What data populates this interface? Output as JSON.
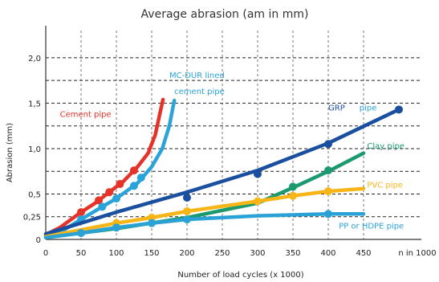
{
  "chart_data": {
    "type": "line",
    "title": "Average abrasion (am in mm)",
    "xlabel": "Number of load cycles (x 1000)",
    "ylabel": "Abrasion (mm)",
    "x_unit_label": "n in 1000",
    "xlim": [
      0,
      500
    ],
    "ylim": [
      0,
      2.3
    ],
    "x_ticks": [
      0,
      50,
      100,
      150,
      200,
      250,
      300,
      350,
      400,
      450
    ],
    "x_tick_labels": [
      "0",
      "50",
      "100",
      "150",
      "200",
      "250",
      "300",
      "350",
      "400",
      "450"
    ],
    "y_ticks": [
      0,
      0.25,
      0.5,
      1.0,
      1.5,
      2.0
    ],
    "y_tick_labels": [
      "0",
      "0,25",
      "0,5",
      "1,0",
      "1,5",
      "2,0"
    ],
    "y_dashed_lines": [
      0.25,
      0.5,
      0.75,
      1.0,
      1.25,
      1.5,
      1.75,
      2.0
    ],
    "grid": true,
    "series": [
      {
        "name": "Cement pipe",
        "color": "#e53329",
        "points": [
          [
            0,
            0.05
          ],
          [
            20,
            0.13
          ],
          [
            50,
            0.3
          ],
          [
            70,
            0.4
          ],
          [
            90,
            0.52
          ],
          [
            110,
            0.64
          ],
          [
            130,
            0.8
          ],
          [
            145,
            0.95
          ],
          [
            155,
            1.15
          ],
          [
            162,
            1.4
          ],
          [
            166,
            1.54
          ]
        ],
        "markers": [
          [
            50,
            0.3
          ],
          [
            75,
            0.43
          ],
          [
            90,
            0.52
          ],
          [
            105,
            0.61
          ],
          [
            125,
            0.76
          ]
        ]
      },
      {
        "name": "MC-DUR lined cement pipe",
        "color": "#2aa3db",
        "points": [
          [
            0,
            0.03
          ],
          [
            25,
            0.1
          ],
          [
            50,
            0.22
          ],
          [
            80,
            0.36
          ],
          [
            100,
            0.45
          ],
          [
            130,
            0.62
          ],
          [
            150,
            0.8
          ],
          [
            165,
            1.0
          ],
          [
            175,
            1.25
          ],
          [
            182,
            1.53
          ]
        ],
        "markers": [
          [
            50,
            0.22
          ],
          [
            80,
            0.36
          ],
          [
            100,
            0.45
          ],
          [
            125,
            0.59
          ],
          [
            135,
            0.68
          ]
        ]
      },
      {
        "name": "GRP pipe",
        "color": "#1a4fa0",
        "points": [
          [
            0,
            0.06
          ],
          [
            100,
            0.3
          ],
          [
            200,
            0.52
          ],
          [
            300,
            0.76
          ],
          [
            400,
            1.06
          ],
          [
            500,
            1.43
          ]
        ],
        "markers": [
          [
            200,
            0.46
          ],
          [
            300,
            0.72
          ],
          [
            400,
            1.05
          ],
          [
            500,
            1.43
          ]
        ]
      },
      {
        "name": "Clay pipe",
        "color": "#1a9a6e",
        "points": [
          [
            0,
            0.02
          ],
          [
            100,
            0.12
          ],
          [
            200,
            0.24
          ],
          [
            300,
            0.4
          ],
          [
            350,
            0.57
          ],
          [
            400,
            0.75
          ],
          [
            450,
            0.95
          ]
        ],
        "markers": [
          [
            350,
            0.58
          ],
          [
            400,
            0.76
          ]
        ]
      },
      {
        "name": "PVC pipe",
        "color": "#f7b517",
        "points": [
          [
            0,
            0.03
          ],
          [
            100,
            0.18
          ],
          [
            150,
            0.24
          ],
          [
            200,
            0.31
          ],
          [
            300,
            0.42
          ],
          [
            350,
            0.48
          ],
          [
            400,
            0.53
          ],
          [
            450,
            0.56
          ]
        ],
        "markers": [
          [
            100,
            0.18
          ],
          [
            150,
            0.24
          ],
          [
            200,
            0.31
          ],
          [
            300,
            0.42
          ],
          [
            350,
            0.48
          ],
          [
            400,
            0.53
          ]
        ]
      },
      {
        "name": "PP or HDPE pipe",
        "color": "#2ba2d6",
        "points": [
          [
            0,
            0.02
          ],
          [
            50,
            0.07
          ],
          [
            100,
            0.13
          ],
          [
            150,
            0.18
          ],
          [
            200,
            0.22
          ],
          [
            300,
            0.26
          ],
          [
            400,
            0.28
          ],
          [
            450,
            0.28
          ]
        ],
        "markers": [
          [
            50,
            0.07
          ],
          [
            100,
            0.13
          ],
          [
            150,
            0.18
          ],
          [
            200,
            0.22
          ],
          [
            400,
            0.28
          ]
        ]
      }
    ],
    "annotations": [
      {
        "text": "Cement pipe",
        "color": "#e53329",
        "x": 20,
        "y": 1.35,
        "anchor": "start"
      },
      {
        "text": "MC-DUR lined",
        "color": "#2aa3db",
        "x": 175,
        "y": 1.78,
        "anchor": "start"
      },
      {
        "text": "cement pipe",
        "color": "#2aa3db",
        "x": 182,
        "y": 1.6,
        "anchor": "start"
      },
      {
        "text": "GRP",
        "color": "#1a4fa0",
        "x": 400,
        "y": 1.42,
        "anchor": "start"
      },
      {
        "text": "pipe",
        "color": "#2aa3db",
        "x": 444,
        "y": 1.42,
        "anchor": "start"
      },
      {
        "text": "Clay pipe",
        "color": "#1a9a6e",
        "x": 455,
        "y": 1.0,
        "anchor": "start"
      },
      {
        "text": "PVC pipe",
        "color": "#f7b517",
        "x": 455,
        "y": 0.57,
        "anchor": "start"
      },
      {
        "text": "PP or HDPE pipe",
        "color": "#2aa3db",
        "x": 415,
        "y": 0.12,
        "anchor": "start"
      }
    ]
  }
}
